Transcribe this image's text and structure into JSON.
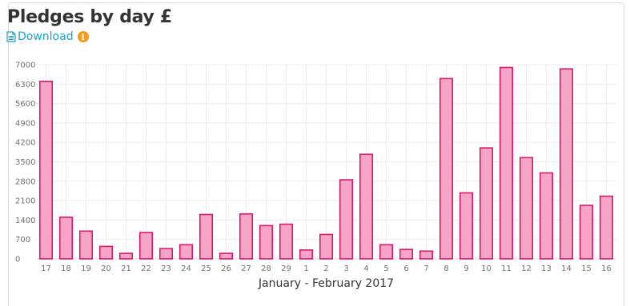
{
  "panel": {
    "title": "Pledges by day £",
    "download_label": "Download",
    "info_icon_glyph": "i"
  },
  "colors": {
    "bar_fill": "#f7a5c6",
    "bar_stroke": "#d81b6b",
    "link": "#1aa3c9",
    "info_badge": "#f59a1c",
    "grid": "#ececec"
  },
  "chart_data": {
    "type": "bar",
    "categories": [
      "17",
      "18",
      "19",
      "20",
      "21",
      "22",
      "23",
      "24",
      "25",
      "26",
      "27",
      "28",
      "29",
      "1",
      "2",
      "3",
      "4",
      "5",
      "6",
      "7",
      "8",
      "9",
      "10",
      "11",
      "12",
      "13",
      "14",
      "15",
      "16"
    ],
    "values": [
      6400,
      1500,
      1000,
      450,
      200,
      950,
      370,
      510,
      1600,
      200,
      1620,
      1200,
      1250,
      320,
      880,
      2850,
      3770,
      510,
      340,
      280,
      6500,
      2380,
      4000,
      6900,
      3650,
      3100,
      6850,
      1930,
      2260
    ],
    "title": "",
    "xlabel": "January - February 2017",
    "ylabel": "",
    "yticks": [
      "0",
      "700",
      "1400",
      "2100",
      "2800",
      "3500",
      "4200",
      "4900",
      "5600",
      "6300",
      "7000"
    ],
    "ylim": [
      0,
      7000
    ],
    "grid": true,
    "legend": "none"
  }
}
